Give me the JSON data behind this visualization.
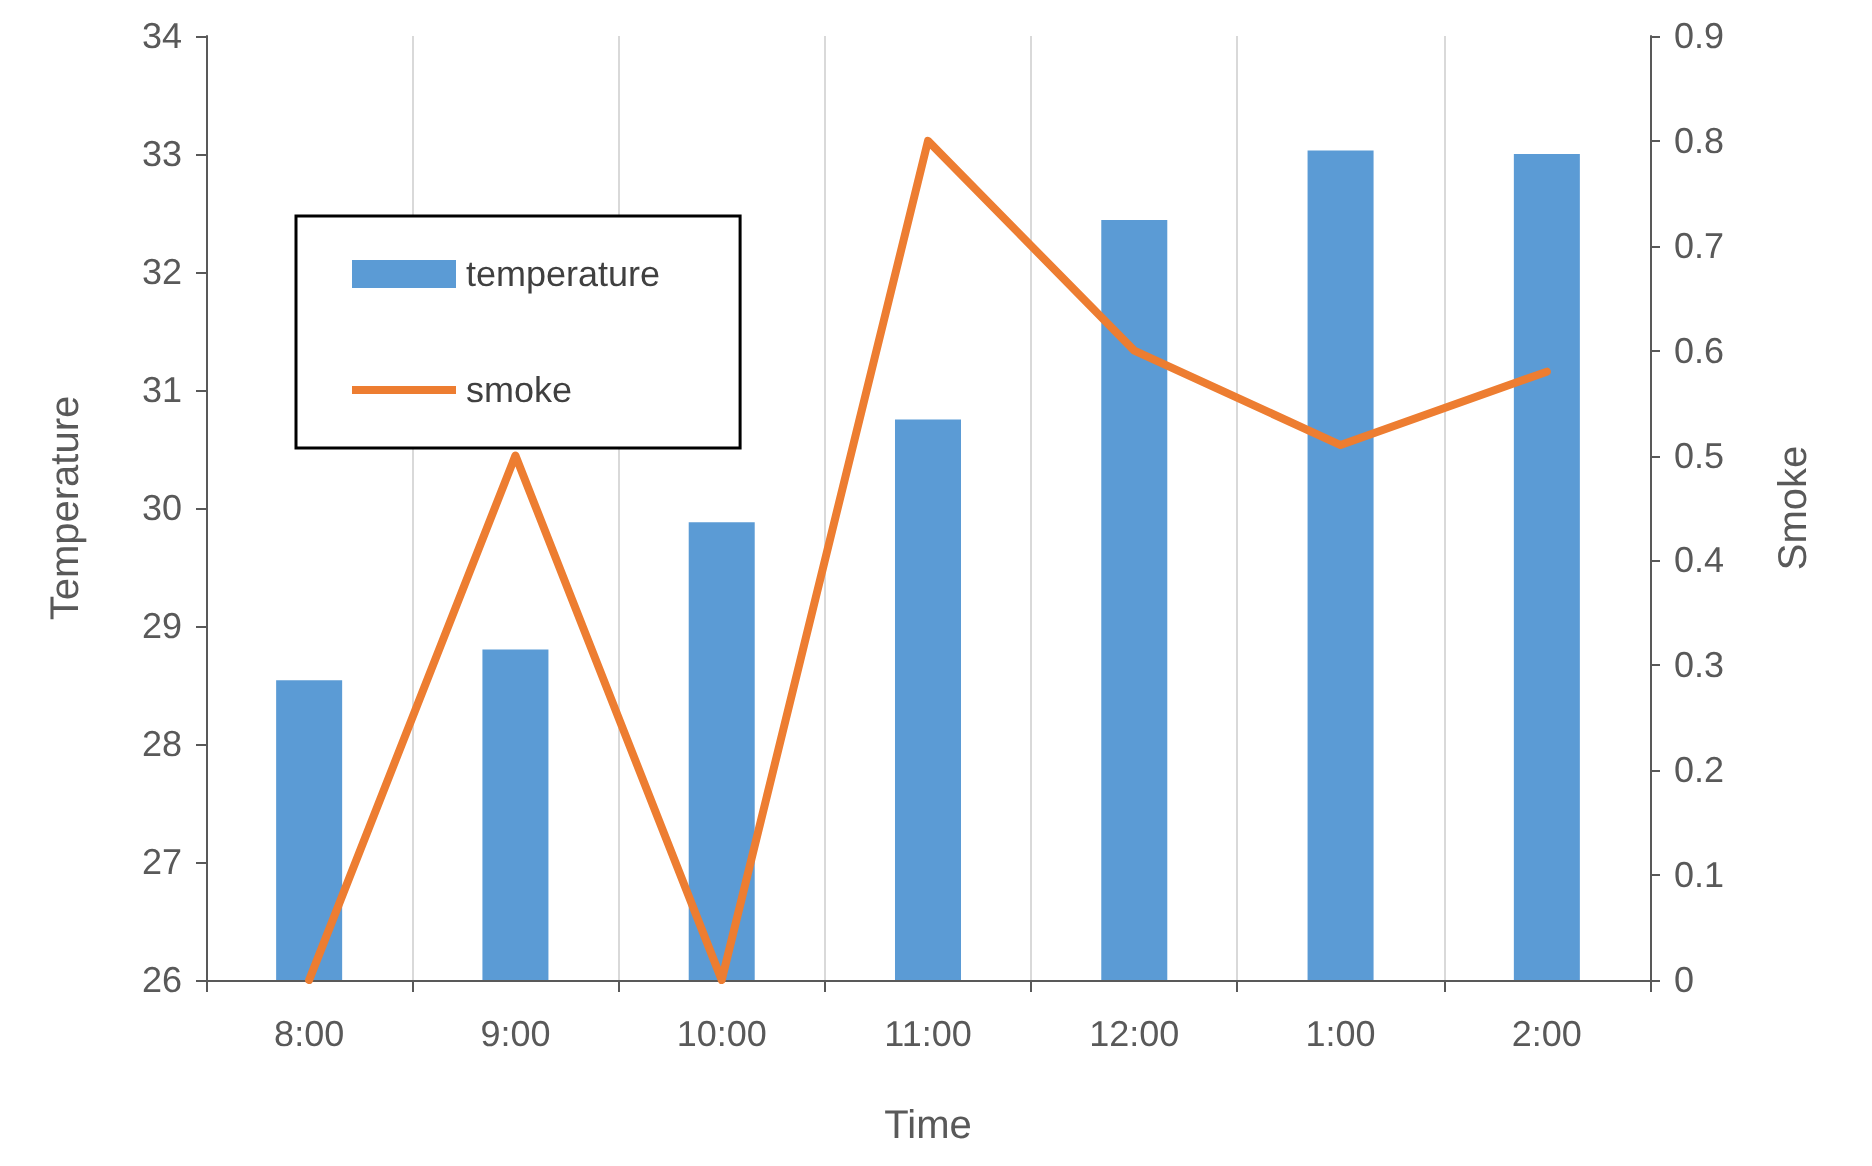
{
  "chart_data": {
    "type": "bar",
    "xlabel": "Time",
    "ylabel": "Temperature",
    "y2label": "Smoke",
    "categories": [
      "8:00",
      "9:00",
      "10:00",
      "11:00",
      "12:00",
      "1:00",
      "2:00"
    ],
    "series": [
      {
        "name": "temperature",
        "color": "#5b9bd5",
        "values": [
          28.54,
          28.8,
          29.88,
          30.75,
          32.44,
          33.03,
          33.0
        ]
      },
      {
        "name": "smoke",
        "type": "line",
        "axis": "y2",
        "color": "#ed7d31",
        "values": [
          0,
          0.5,
          0,
          0.8,
          0.6,
          0.51,
          0.58
        ]
      }
    ],
    "ylim": [
      26,
      34
    ],
    "yticks": [
      26,
      27,
      28,
      29,
      30,
      31,
      32,
      33,
      34
    ],
    "y2lim": [
      0,
      0.9
    ],
    "y2ticks": [
      0,
      0.1,
      0.2,
      0.3,
      0.4,
      0.5,
      0.6,
      0.7,
      0.8,
      0.9
    ],
    "grid": "x",
    "legend": "top left",
    "marker": "none",
    "line_style": "solid"
  }
}
